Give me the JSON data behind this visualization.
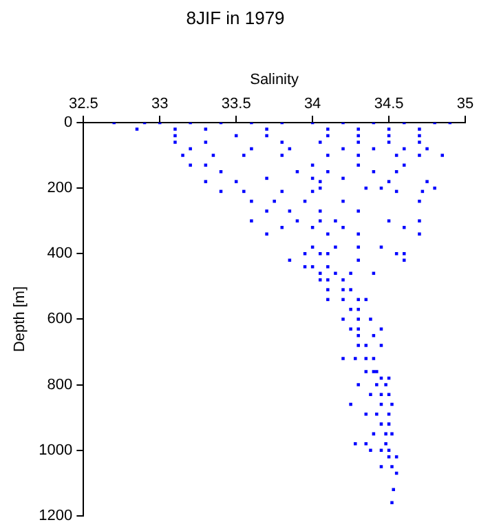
{
  "chart_data": {
    "type": "scatter",
    "title": "8JIF in 1979",
    "xlabel": "Salinity",
    "ylabel": "Depth [m]",
    "xlim": [
      32.5,
      35
    ],
    "xticks": [
      32.5,
      33,
      33.5,
      34,
      34.5,
      35
    ],
    "ylim": [
      1200,
      0
    ],
    "yticks": [
      0,
      200,
      400,
      600,
      800,
      1000,
      1200
    ],
    "grid": false,
    "legend": false,
    "marker": "square",
    "series": [
      {
        "color": "#0000ff",
        "x": [
          32.7,
          32.9,
          33.0,
          33.2,
          33.4,
          33.6,
          33.8,
          34.0,
          34.2,
          34.4,
          34.6,
          34.8,
          34.9,
          32.85,
          33.1,
          33.3,
          33.7,
          34.1,
          34.3,
          34.5,
          34.7,
          33.1,
          33.5,
          33.7,
          34.1,
          34.3,
          34.5,
          34.7,
          33.1,
          33.3,
          33.8,
          34.05,
          34.3,
          34.5,
          34.7,
          33.2,
          33.6,
          33.85,
          34.2,
          34.4,
          34.6,
          34.75,
          33.15,
          33.35,
          33.55,
          33.8,
          34.1,
          34.3,
          34.55,
          34.7,
          34.85,
          33.2,
          33.3,
          34.0,
          34.3,
          34.6,
          33.4,
          33.9,
          34.1,
          34.4,
          34.55,
          33.7,
          34.0,
          34.2,
          33.3,
          33.5,
          34.05,
          34.5,
          34.75,
          34.05,
          34.35,
          34.45,
          34.8,
          33.4,
          33.55,
          33.8,
          34.0,
          34.55,
          34.72,
          33.6,
          33.75,
          33.95,
          34.2,
          34.7,
          33.7,
          33.85,
          34.05,
          34.3,
          33.6,
          33.9,
          34.05,
          34.15,
          34.5,
          34.7,
          33.8,
          34.0,
          34.2,
          34.6,
          33.7,
          34.1,
          34.3,
          34.7,
          34.0,
          34.15,
          34.3,
          34.45,
          33.95,
          34.05,
          34.1,
          34.55,
          34.6,
          33.85,
          34.3,
          34.6,
          33.95,
          34.0,
          34.1,
          34.05,
          34.15,
          34.25,
          34.4,
          34.05,
          34.1,
          34.2,
          34.1,
          34.2,
          34.25,
          34.1,
          34.2,
          34.3,
          34.35,
          34.25,
          34.3,
          34.2,
          34.3,
          34.38,
          34.25,
          34.3,
          34.45,
          34.3,
          34.4,
          34.3,
          34.35,
          34.45,
          34.2,
          34.28,
          34.35,
          34.4,
          34.35,
          34.4,
          34.42,
          34.45,
          34.5,
          34.3,
          34.42,
          34.48,
          34.38,
          34.45,
          34.5,
          34.25,
          34.45,
          34.52,
          34.35,
          34.42,
          34.5,
          34.45,
          34.5,
          34.4,
          34.48,
          34.52,
          34.28,
          34.35,
          34.48,
          34.38,
          34.45,
          34.5,
          34.5,
          34.55,
          34.45,
          34.52,
          34.55,
          34.53,
          34.52
        ],
        "values": [
          0,
          0,
          0,
          0,
          0,
          0,
          0,
          0,
          0,
          0,
          0,
          0,
          0,
          20,
          20,
          20,
          20,
          20,
          20,
          20,
          20,
          40,
          40,
          40,
          40,
          40,
          40,
          40,
          60,
          60,
          60,
          60,
          60,
          60,
          60,
          80,
          80,
          80,
          80,
          80,
          80,
          80,
          100,
          100,
          100,
          100,
          100,
          100,
          100,
          100,
          100,
          130,
          130,
          130,
          130,
          130,
          150,
          150,
          150,
          150,
          150,
          170,
          170,
          170,
          180,
          180,
          180,
          180,
          180,
          200,
          200,
          200,
          200,
          210,
          210,
          210,
          210,
          210,
          210,
          240,
          240,
          240,
          240,
          240,
          270,
          270,
          270,
          270,
          300,
          300,
          300,
          300,
          300,
          300,
          320,
          320,
          320,
          320,
          340,
          340,
          340,
          340,
          380,
          380,
          380,
          380,
          400,
          400,
          400,
          400,
          400,
          420,
          420,
          420,
          440,
          440,
          440,
          460,
          460,
          460,
          460,
          480,
          480,
          480,
          510,
          510,
          510,
          540,
          540,
          540,
          540,
          570,
          570,
          600,
          600,
          600,
          630,
          630,
          630,
          650,
          650,
          680,
          680,
          680,
          720,
          720,
          720,
          720,
          760,
          760,
          760,
          780,
          780,
          800,
          800,
          800,
          830,
          830,
          830,
          860,
          860,
          860,
          890,
          890,
          890,
          920,
          920,
          950,
          950,
          950,
          980,
          980,
          980,
          1000,
          1000,
          1000,
          1020,
          1020,
          1050,
          1050,
          1070,
          1120,
          1160
        ]
      }
    ]
  }
}
